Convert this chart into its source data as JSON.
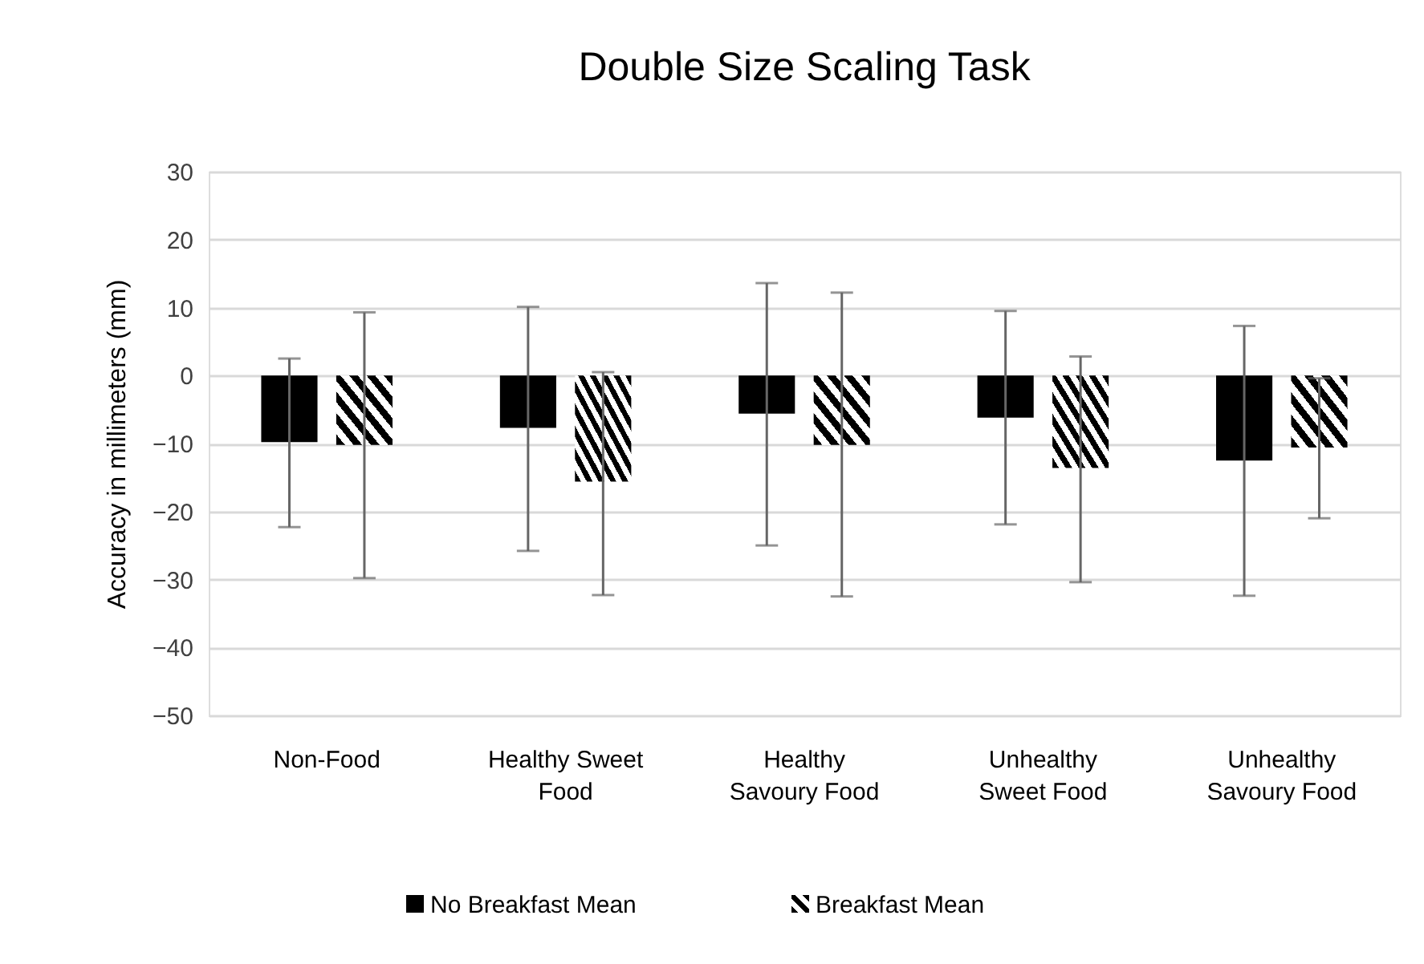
{
  "chart_data": {
    "type": "bar",
    "title": "Double Size Scaling Task",
    "ylabel": "Accuracy in millimeters (mm)",
    "categories": [
      "Non-Food",
      "Healthy Sweet Food",
      "Healthy Savoury Food",
      "Unhealthy Sweet Food",
      "Unhealthy Savoury Food"
    ],
    "series": [
      {
        "name": "No Breakfast Mean",
        "color": "#000000",
        "values": [
          -9.8,
          -7.7,
          -5.6,
          -6.2,
          -12.5
        ],
        "errors": [
          [
            -22.3,
            2.5
          ],
          [
            -25.8,
            10.1
          ],
          [
            -25.0,
            13.6
          ],
          [
            -21.9,
            9.5
          ],
          [
            -32.4,
            7.3
          ]
        ]
      },
      {
        "name": "Breakfast Mean",
        "color": "#000000",
        "values": [
          -10.2,
          -15.6,
          -10.2,
          -13.6,
          -10.6
        ],
        "errors": [
          [
            -29.8,
            9.3
          ],
          [
            -32.3,
            0.5
          ],
          [
            -32.5,
            12.2
          ],
          [
            -30.4,
            2.8
          ],
          [
            -21.0,
            -0.4
          ]
        ]
      }
    ],
    "ylim": [
      -50,
      30
    ],
    "yticks": [
      -50,
      -40,
      -30,
      -20,
      -10,
      0,
      10,
      20,
      30
    ],
    "grid": "y",
    "legend": "bottom"
  }
}
